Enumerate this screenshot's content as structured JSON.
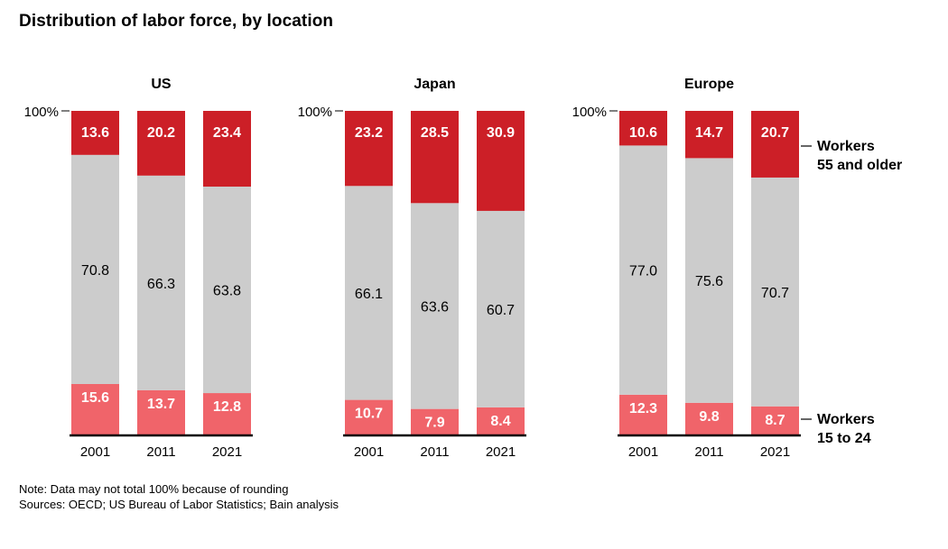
{
  "title": "Distribution of labor force, by location",
  "note": "Note: Data may not total 100% because of rounding",
  "sources": "Sources: OECD; US Bureau of Labor Statistics; Bain analysis",
  "colors": {
    "older": "#cc1f27",
    "middle": "#cccccc",
    "young": "#f0646a",
    "axis": "#000000"
  },
  "chart_data": {
    "type": "bar",
    "stacked": true,
    "y_tick_label": "100%",
    "ylim": [
      0,
      100
    ],
    "legend": [
      "Workers 55 and older",
      "Workers 15 to 24"
    ],
    "panels": [
      {
        "title": "US",
        "categories": [
          "2001",
          "2011",
          "2021"
        ],
        "series": [
          {
            "name": "Workers 15 to 24",
            "values": [
              15.6,
              13.7,
              12.8
            ]
          },
          {
            "values": [
              70.8,
              66.3,
              63.8
            ]
          },
          {
            "name": "Workers 55 and older",
            "values": [
              13.6,
              20.2,
              23.4
            ]
          }
        ]
      },
      {
        "title": "Japan",
        "categories": [
          "2001",
          "2011",
          "2021"
        ],
        "series": [
          {
            "name": "Workers 15 to 24",
            "values": [
              10.7,
              7.9,
              8.4
            ]
          },
          {
            "values": [
              66.1,
              63.6,
              60.7
            ]
          },
          {
            "name": "Workers 55 and older",
            "values": [
              23.2,
              28.5,
              30.9
            ]
          }
        ]
      },
      {
        "title": "Europe",
        "categories": [
          "2001",
          "2011",
          "2021"
        ],
        "series": [
          {
            "name": "Workers 15 to 24",
            "values": [
              12.3,
              9.8,
              8.7
            ]
          },
          {
            "values": [
              77.0,
              75.6,
              70.7
            ]
          },
          {
            "name": "Workers 55 and older",
            "values": [
              10.6,
              14.7,
              20.7
            ]
          }
        ]
      }
    ]
  }
}
